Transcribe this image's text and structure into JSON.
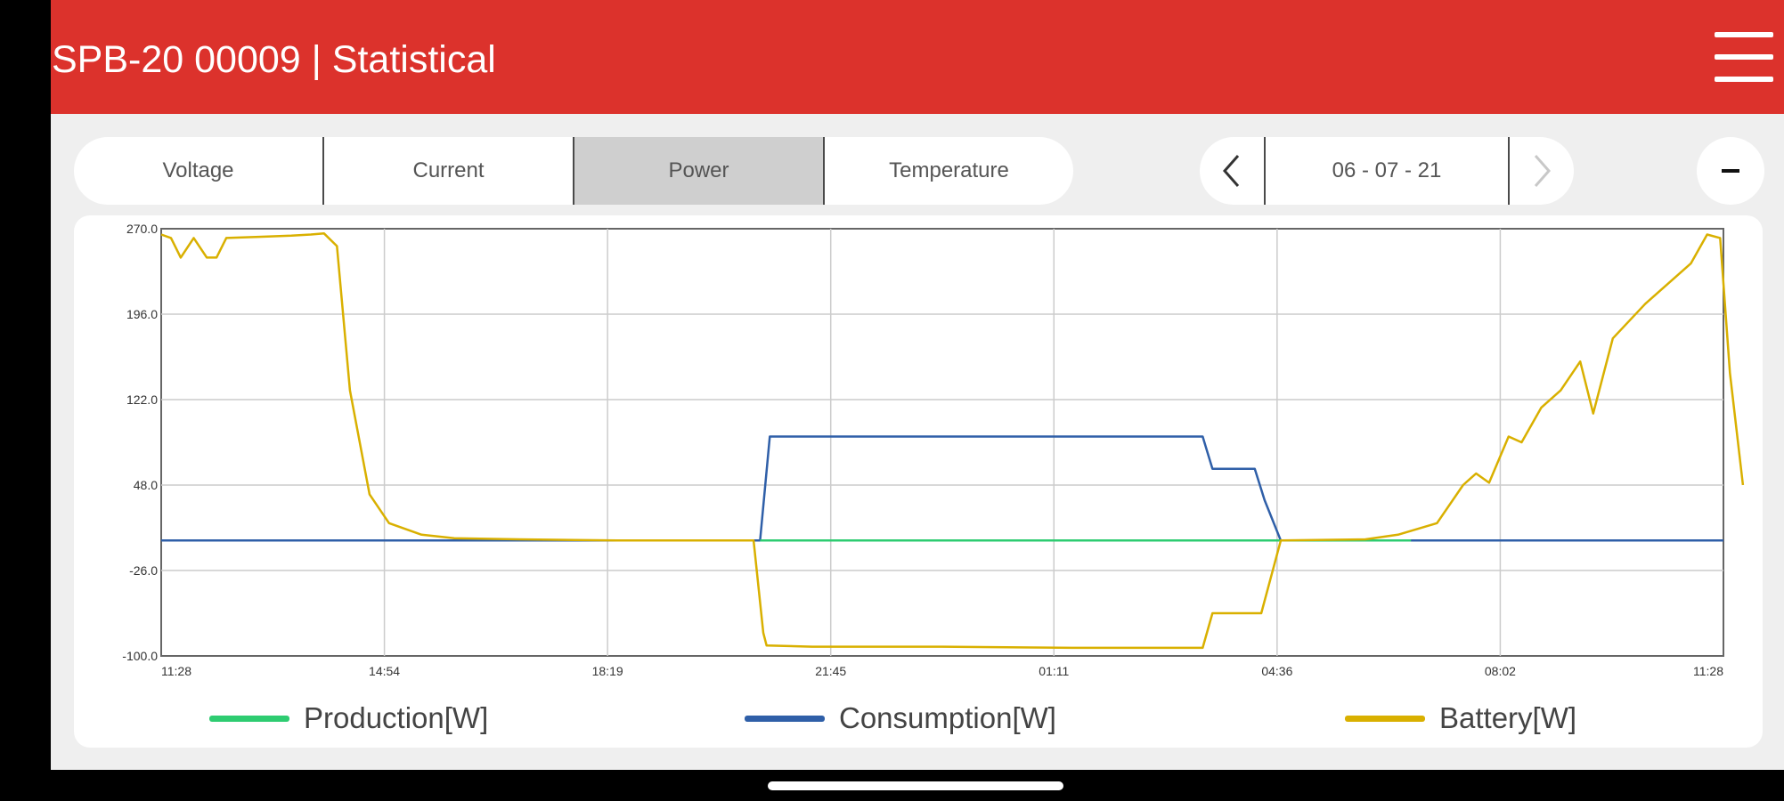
{
  "app_bar": {
    "title": "SPB-20 00009 | Statistical",
    "menu_icon": "hamburger-menu-icon"
  },
  "tabs": [
    {
      "label": "Voltage",
      "active": false
    },
    {
      "label": "Current",
      "active": false
    },
    {
      "label": "Power",
      "active": true
    },
    {
      "label": "Temperature",
      "active": false
    }
  ],
  "date_nav": {
    "date": "06 - 07 - 21",
    "prev_icon": "chevron-left-icon",
    "next_icon": "chevron-right-icon",
    "next_enabled": false
  },
  "collapse_icon": "minus-icon",
  "colors": {
    "accent": "#dc322c",
    "production": "#2ecc71",
    "consumption": "#2f5fa8",
    "battery": "#d9b000"
  },
  "chart_data": {
    "type": "line",
    "x_ticks": [
      "11:28",
      "14:54",
      "18:19",
      "21:45",
      "01:11",
      "04:36",
      "08:02",
      "11:28"
    ],
    "y_ticks": [
      "270.0",
      "196.0",
      "122.0",
      "48.0",
      "-26.0",
      "-100.0"
    ],
    "ylim": [
      -100,
      270
    ],
    "x_hours": [
      0,
      24
    ],
    "grid": true,
    "legend_position": "bottom",
    "series": [
      {
        "name": "Production[W]",
        "color": "#2ecc71",
        "points": [
          [
            9.2,
            0
          ],
          [
            19.2,
            0
          ]
        ]
      },
      {
        "name": "Consumption[W]",
        "color": "#2f5fa8",
        "points": [
          [
            0,
            0
          ],
          [
            9.2,
            0
          ],
          [
            9.35,
            90
          ],
          [
            14.0,
            90
          ],
          [
            16.0,
            90
          ],
          [
            16.15,
            62
          ],
          [
            16.8,
            62
          ],
          [
            16.95,
            35
          ],
          [
            17.2,
            0
          ],
          [
            24,
            0
          ]
        ]
      },
      {
        "name": "Battery[W]",
        "color": "#d9b000",
        "points": [
          [
            0,
            265
          ],
          [
            0.15,
            262
          ],
          [
            0.3,
            245
          ],
          [
            0.5,
            262
          ],
          [
            0.7,
            245
          ],
          [
            0.85,
            245
          ],
          [
            1.0,
            262
          ],
          [
            1.5,
            263
          ],
          [
            2.0,
            264
          ],
          [
            2.3,
            265
          ],
          [
            2.5,
            266
          ],
          [
            2.7,
            255
          ],
          [
            2.9,
            130
          ],
          [
            3.2,
            40
          ],
          [
            3.5,
            15
          ],
          [
            4.0,
            5
          ],
          [
            4.5,
            2
          ],
          [
            5.5,
            1
          ],
          [
            7.0,
            0
          ],
          [
            8.0,
            0
          ],
          [
            9.1,
            0
          ],
          [
            9.25,
            -80
          ],
          [
            9.3,
            -91
          ],
          [
            10.0,
            -92
          ],
          [
            12.0,
            -92
          ],
          [
            14.0,
            -93
          ],
          [
            16.0,
            -93
          ],
          [
            16.15,
            -63
          ],
          [
            16.9,
            -63
          ],
          [
            17.2,
            0
          ],
          [
            18.5,
            1
          ],
          [
            19.0,
            5
          ],
          [
            19.6,
            15
          ],
          [
            20.0,
            48
          ],
          [
            20.2,
            58
          ],
          [
            20.4,
            50
          ],
          [
            20.7,
            90
          ],
          [
            20.9,
            85
          ],
          [
            21.2,
            115
          ],
          [
            21.5,
            130
          ],
          [
            21.8,
            155
          ],
          [
            22.0,
            110
          ],
          [
            22.3,
            175
          ],
          [
            22.8,
            205
          ],
          [
            23.2,
            225
          ],
          [
            23.5,
            240
          ],
          [
            23.75,
            265
          ],
          [
            23.95,
            262
          ],
          [
            24.1,
            145
          ],
          [
            24.3,
            48
          ]
        ]
      }
    ]
  }
}
